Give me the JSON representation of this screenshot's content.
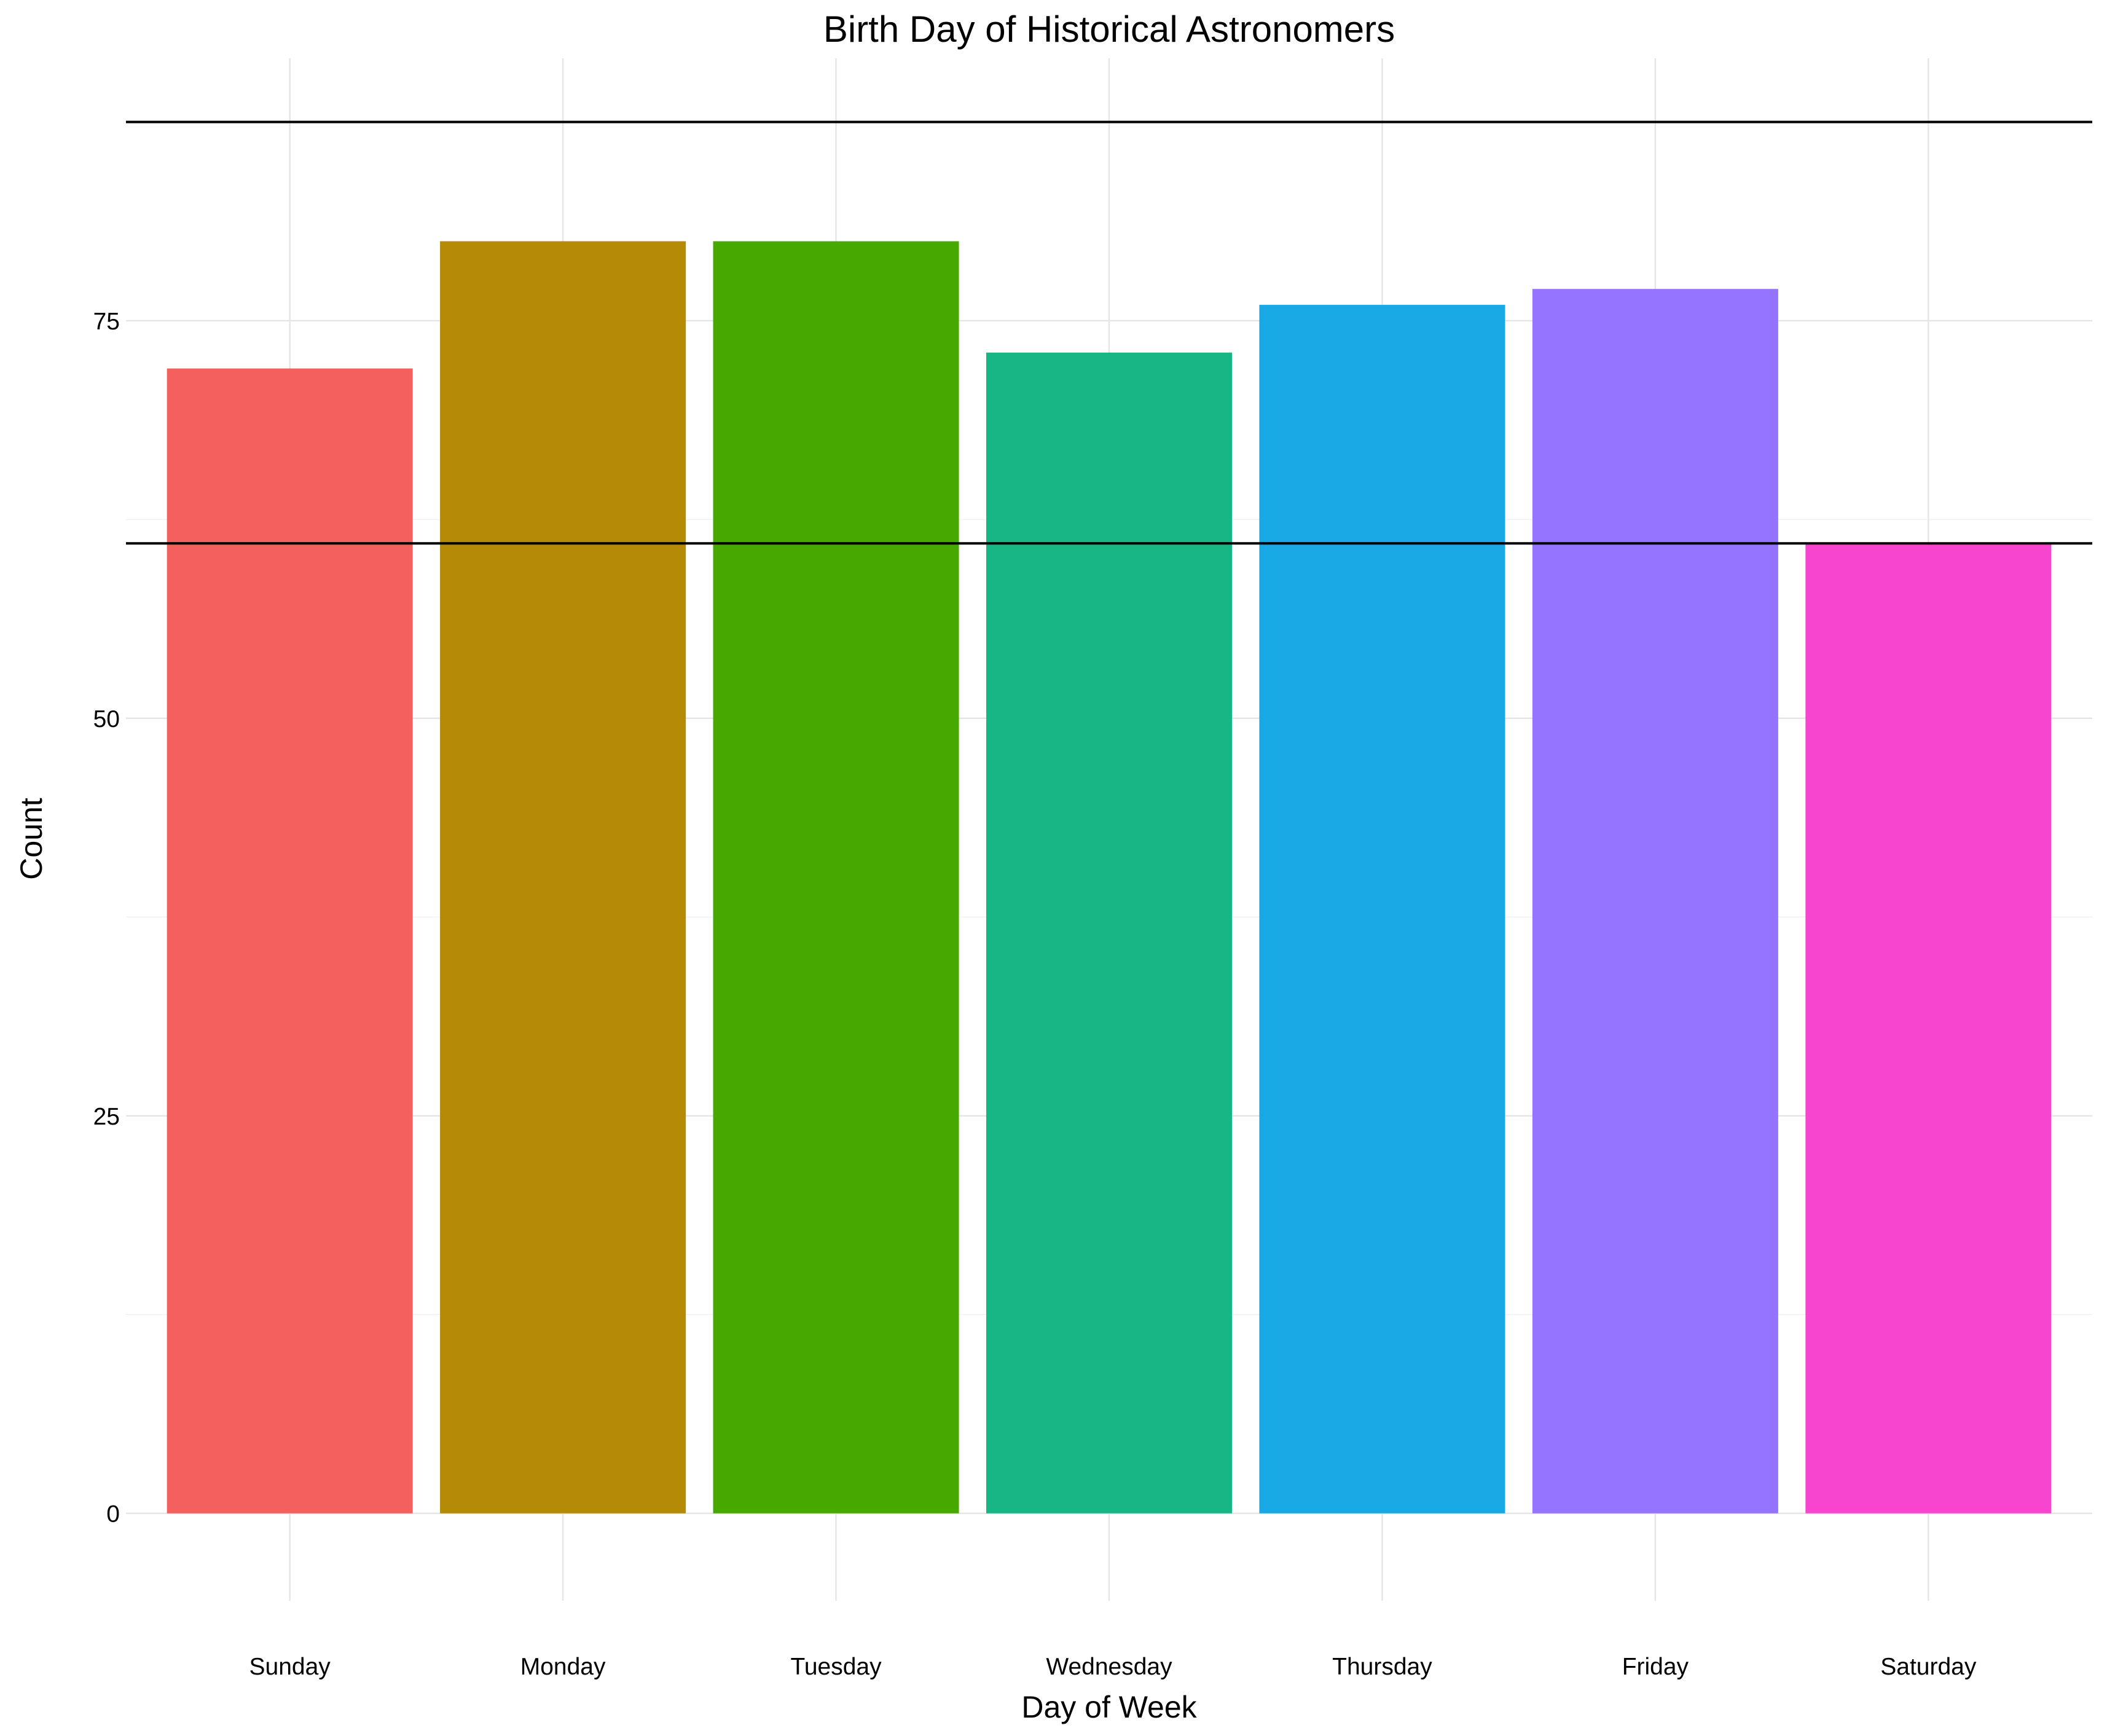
{
  "chart_data": {
    "type": "bar",
    "title": "Birth Day of Historical Astronomers",
    "xlabel": "Day of Week",
    "ylabel": "Count",
    "categories": [
      "Sunday",
      "Monday",
      "Tuesday",
      "Wednesday",
      "Thursday",
      "Friday",
      "Saturday"
    ],
    "values": [
      72,
      80,
      80,
      73,
      76,
      77,
      61
    ],
    "colors": [
      "#F3605D",
      "#B58A06",
      "#47A800",
      "#18B585",
      "#18A8E4",
      "#9473FF",
      "#F845CF"
    ],
    "ylim": [
      -5.5,
      91.5
    ],
    "yticks": [
      0,
      25,
      50,
      75
    ],
    "reference_lines": [
      61,
      87.5
    ],
    "legend": "none",
    "grid": true
  }
}
